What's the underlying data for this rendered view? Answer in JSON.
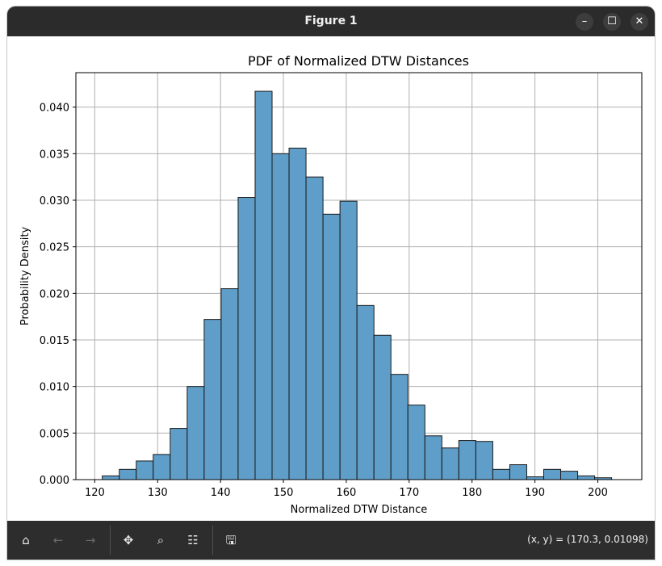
{
  "window": {
    "title": "Figure 1",
    "controls": {
      "minimize": "–",
      "maximize": "☐",
      "close": "✕"
    }
  },
  "toolbar": {
    "buttons": [
      {
        "name": "home",
        "icon": "home-icon",
        "glyph": "⌂",
        "enabled": true
      },
      {
        "name": "back",
        "icon": "arrow-left-icon",
        "glyph": "←",
        "enabled": false
      },
      {
        "name": "forward",
        "icon": "arrow-right-icon",
        "glyph": "→",
        "enabled": false
      },
      {
        "name": "pan",
        "icon": "move-icon",
        "glyph": "✥",
        "enabled": true
      },
      {
        "name": "zoom",
        "icon": "zoom-icon",
        "glyph": "⌕",
        "enabled": true
      },
      {
        "name": "configure",
        "icon": "sliders-icon",
        "glyph": "☷",
        "enabled": true
      },
      {
        "name": "save",
        "icon": "save-icon",
        "glyph": "🖫",
        "enabled": true
      }
    ],
    "coords": "(x, y) = (170.3, 0.01098)"
  },
  "chart_data": {
    "type": "bar",
    "title": "PDF of Normalized DTW Distances",
    "xlabel": "Normalized DTW Distance",
    "ylabel": "Probability Density",
    "xlim": [
      117,
      207
    ],
    "ylim": [
      0,
      0.0437
    ],
    "xticks": [
      120,
      130,
      140,
      150,
      160,
      170,
      180,
      190,
      200
    ],
    "yticks": [
      0.0,
      0.005,
      0.01,
      0.015,
      0.02,
      0.025,
      0.03,
      0.035,
      0.04
    ],
    "ytick_labels": [
      "0.000",
      "0.005",
      "0.010",
      "0.015",
      "0.020",
      "0.025",
      "0.030",
      "0.035",
      "0.040"
    ],
    "grid": true,
    "bar_color": "#5f9ec9",
    "edge_color": "#1a1a1a",
    "bin_edges": [
      121.2,
      123.9,
      126.6,
      129.3,
      132.0,
      134.7,
      137.4,
      140.1,
      142.8,
      145.5,
      148.2,
      150.9,
      153.6,
      156.3,
      159.0,
      161.7,
      164.4,
      167.1,
      169.8,
      172.5,
      175.2,
      177.9,
      180.6,
      183.3,
      186.0,
      188.7,
      191.4,
      194.1,
      196.8,
      199.5,
      202.2
    ],
    "values": [
      0.0004,
      0.0011,
      0.002,
      0.0027,
      0.0055,
      0.01,
      0.0172,
      0.0205,
      0.0303,
      0.0417,
      0.035,
      0.0356,
      0.0325,
      0.0285,
      0.0299,
      0.0187,
      0.0155,
      0.0113,
      0.008,
      0.0047,
      0.0034,
      0.0042,
      0.0041,
      0.0011,
      0.0016,
      0.0003,
      0.0011,
      0.0009,
      0.0004,
      0.0002
    ]
  }
}
